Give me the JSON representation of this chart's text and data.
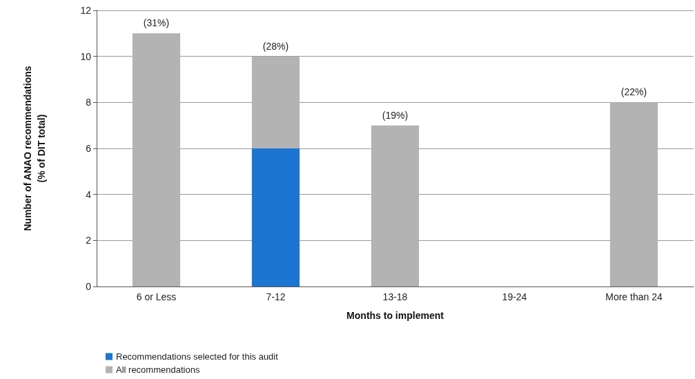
{
  "chart_data": {
    "type": "bar",
    "stacked": true,
    "xlabel": "Months to implement",
    "ylabel": "Number of ANAO recommendations\n(% of DIT total)",
    "categories": [
      "6 or Less",
      "7-12",
      "13-18",
      "19-24",
      "More than 24"
    ],
    "series": [
      {
        "name": "Recommendations selected for this audit",
        "color": "#1c75d0",
        "values": [
          0,
          6,
          0,
          0,
          0
        ]
      },
      {
        "name": "All recommendations",
        "color": "#b3b3b3",
        "values": [
          11,
          4,
          7,
          0,
          8
        ]
      }
    ],
    "annotations": [
      {
        "text": "(31%)",
        "x": "6 or Less",
        "y": 11
      },
      {
        "text": "(28%)",
        "x": "7-12",
        "y": 10
      },
      {
        "text": "(19%)",
        "x": "13-18",
        "y": 7
      },
      {
        "text": "(22%)",
        "x": "More than 24",
        "y": 8
      }
    ],
    "ylim": [
      0,
      12
    ],
    "yticks": [
      0,
      2,
      4,
      6,
      8,
      10,
      12
    ],
    "grid": "y",
    "legend": "bottom left"
  }
}
